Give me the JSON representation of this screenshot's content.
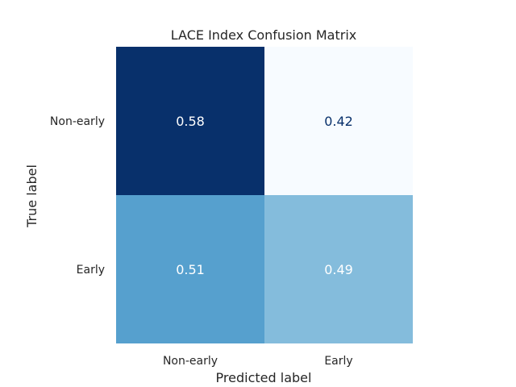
{
  "chart_data": {
    "type": "heatmap",
    "title": "LACE Index Confusion Matrix",
    "xlabel": "Predicted label",
    "ylabel": "True label",
    "x_categories": [
      "Non-early",
      "Early"
    ],
    "y_categories": [
      "Non-early",
      "Early"
    ],
    "values": [
      [
        0.58,
        0.42
      ],
      [
        0.51,
        0.49
      ]
    ],
    "value_range": [
      0.42,
      0.58
    ],
    "colormap": "Blues",
    "text_colors": {
      "on_dark": "#ffffff",
      "on_light": "#08306b"
    },
    "grid": false,
    "colorbar": false
  }
}
